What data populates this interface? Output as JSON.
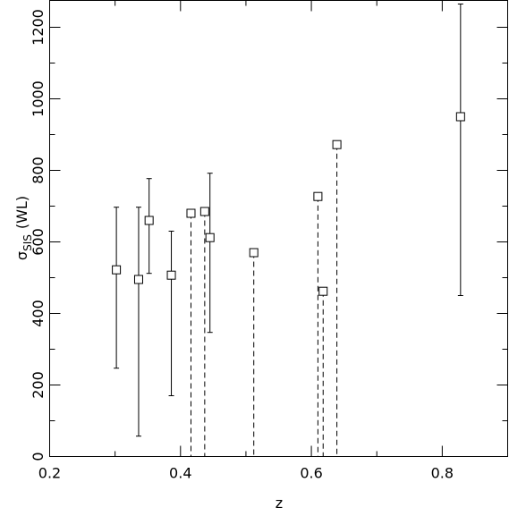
{
  "chart_data": {
    "type": "scatter",
    "xlabel": "z",
    "ylabel": "σ",
    "ylabel_sub": "SIS",
    "ylabel_suffix": "(WL)",
    "xlim": [
      0.2,
      0.9
    ],
    "ylim": [
      0,
      1275
    ],
    "xticks": [
      {
        "value": 0.2,
        "label": "0.2"
      },
      {
        "value": 0.4,
        "label": "0.4"
      },
      {
        "value": 0.6,
        "label": "0.6"
      },
      {
        "value": 0.8,
        "label": "0.8"
      }
    ],
    "xminorticks": [
      0.3,
      0.5,
      0.7
    ],
    "yticks": [
      0,
      200,
      400,
      600,
      800,
      1000,
      1200
    ],
    "yminorticks": [
      100,
      300,
      500,
      700,
      900,
      1100
    ],
    "series": [
      {
        "color": "#000000",
        "marker": "square",
        "dashed": false,
        "x": [
          0.302,
          0.336,
          0.352,
          0.386,
          0.445,
          0.828
        ],
        "values": [
          522,
          495,
          660,
          507,
          612,
          950
        ],
        "err_low": [
          247,
          57,
          512,
          170,
          347,
          450
        ],
        "err_high": [
          697,
          697,
          777,
          630,
          792,
          1265
        ]
      },
      {
        "color": "#000000",
        "marker": "square",
        "dashed": true,
        "x": [
          0.416,
          0.437,
          0.512,
          0.61,
          0.618,
          0.639
        ],
        "values": [
          680,
          685,
          570,
          727,
          462,
          872
        ]
      }
    ]
  }
}
